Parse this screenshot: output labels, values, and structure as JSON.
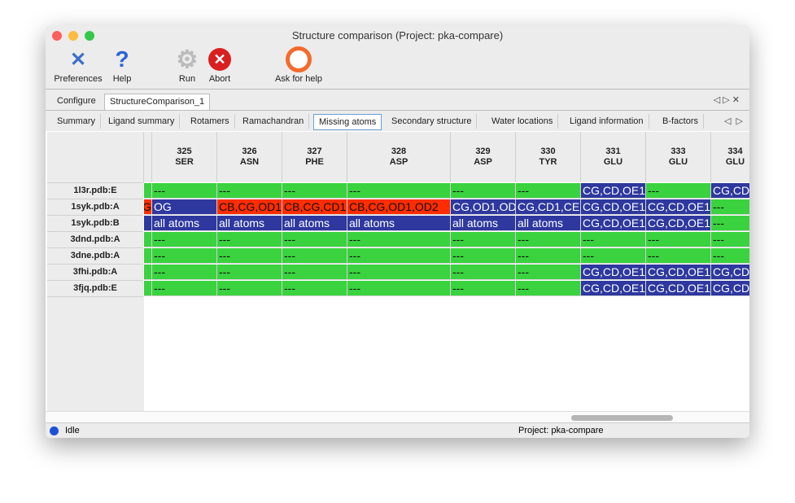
{
  "window": {
    "title": "Structure comparison (Project: pka-compare)"
  },
  "toolbar": [
    {
      "label": "Preferences",
      "icon": "tools-icon"
    },
    {
      "label": "Help",
      "icon": "help-icon"
    },
    {
      "label": "Run",
      "icon": "gear-icon"
    },
    {
      "label": "Abort",
      "icon": "abort-icon"
    },
    {
      "label": "Ask for help",
      "icon": "lifebuoy-icon"
    }
  ],
  "tabs": [
    {
      "label": "Configure"
    },
    {
      "label": "StructureComparison_1"
    }
  ],
  "subtabs": [
    {
      "label": "Summary"
    },
    {
      "label": "Ligand summary"
    },
    {
      "label": "Rotamers"
    },
    {
      "label": "Ramachandran"
    },
    {
      "label": "Missing atoms"
    },
    {
      "label": "Secondary structure"
    },
    {
      "label": "Water locations"
    },
    {
      "label": "Ligand information"
    },
    {
      "label": "B-factors"
    }
  ],
  "colors": {
    "green": "#3ad23f",
    "blue": "#2e389e",
    "red": "#ff2d00"
  },
  "table": {
    "columns": [
      {
        "num": "",
        "res": ""
      },
      {
        "num": "325",
        "res": "SER"
      },
      {
        "num": "326",
        "res": "ASN"
      },
      {
        "num": "327",
        "res": "PHE"
      },
      {
        "num": "328",
        "res": "ASP"
      },
      {
        "num": "329",
        "res": "ASP"
      },
      {
        "num": "330",
        "res": "TYR"
      },
      {
        "num": "331",
        "res": "GLU"
      },
      {
        "num": "333",
        "res": "GLU"
      },
      {
        "num": "334",
        "res": "GLU"
      }
    ],
    "rows": [
      {
        "label": "1l3r.pdb:E",
        "cells": [
          [
            "",
            "green"
          ],
          [
            "---",
            "green"
          ],
          [
            "---",
            "green"
          ],
          [
            "---",
            "green"
          ],
          [
            "---",
            "green"
          ],
          [
            "---",
            "green"
          ],
          [
            "---",
            "green"
          ],
          [
            "CG,CD,OE1",
            "blue"
          ],
          [
            "---",
            "green"
          ],
          [
            "CG,CD",
            "blue"
          ]
        ]
      },
      {
        "label": "1syk.pdb:A",
        "cells": [
          [
            "G",
            "red"
          ],
          [
            "OG",
            "blue"
          ],
          [
            "CB,CG,OD1",
            "red"
          ],
          [
            "CB,CG,CD1",
            "red"
          ],
          [
            "CB,CG,OD1,OD2",
            "red"
          ],
          [
            "CG,OD1,OD",
            "blue"
          ],
          [
            "CG,CD1,CE",
            "blue"
          ],
          [
            "CG,CD,OE1",
            "blue"
          ],
          [
            "CG,CD,OE1",
            "blue"
          ],
          [
            "---",
            "green"
          ]
        ]
      },
      {
        "label": "1syk.pdb:B",
        "cells": [
          [
            "",
            "blue"
          ],
          [
            "all atoms",
            "blue"
          ],
          [
            "all atoms",
            "blue"
          ],
          [
            "all atoms",
            "blue"
          ],
          [
            "all atoms",
            "blue"
          ],
          [
            "all atoms",
            "blue"
          ],
          [
            "all atoms",
            "blue"
          ],
          [
            "CG,CD,OE1",
            "blue"
          ],
          [
            "CG,CD,OE1",
            "blue"
          ],
          [
            "---",
            "green"
          ]
        ]
      },
      {
        "label": "3dnd.pdb:A",
        "cells": [
          [
            "",
            "green"
          ],
          [
            "---",
            "green"
          ],
          [
            "---",
            "green"
          ],
          [
            "---",
            "green"
          ],
          [
            "---",
            "green"
          ],
          [
            "---",
            "green"
          ],
          [
            "---",
            "green"
          ],
          [
            "---",
            "green"
          ],
          [
            "---",
            "green"
          ],
          [
            "---",
            "green"
          ]
        ]
      },
      {
        "label": "3dne.pdb:A",
        "cells": [
          [
            "",
            "green"
          ],
          [
            "---",
            "green"
          ],
          [
            "---",
            "green"
          ],
          [
            "---",
            "green"
          ],
          [
            "---",
            "green"
          ],
          [
            "---",
            "green"
          ],
          [
            "---",
            "green"
          ],
          [
            "---",
            "green"
          ],
          [
            "---",
            "green"
          ],
          [
            "---",
            "green"
          ]
        ]
      },
      {
        "label": "3fhi.pdb:A",
        "cells": [
          [
            "",
            "green"
          ],
          [
            "---",
            "green"
          ],
          [
            "---",
            "green"
          ],
          [
            "---",
            "green"
          ],
          [
            "---",
            "green"
          ],
          [
            "---",
            "green"
          ],
          [
            "---",
            "green"
          ],
          [
            "CG,CD,OE1",
            "blue"
          ],
          [
            "CG,CD,OE1",
            "blue"
          ],
          [
            "CG,CD",
            "blue"
          ]
        ]
      },
      {
        "label": "3fjq.pdb:E",
        "cells": [
          [
            "",
            "green"
          ],
          [
            "---",
            "green"
          ],
          [
            "---",
            "green"
          ],
          [
            "---",
            "green"
          ],
          [
            "---",
            "green"
          ],
          [
            "---",
            "green"
          ],
          [
            "---",
            "green"
          ],
          [
            "CG,CD,OE1",
            "blue"
          ],
          [
            "CG,CD,OE1",
            "blue"
          ],
          [
            "CG,CD",
            "blue"
          ]
        ]
      }
    ]
  },
  "status": {
    "text": "Idle",
    "project": "Project: pka-compare"
  }
}
